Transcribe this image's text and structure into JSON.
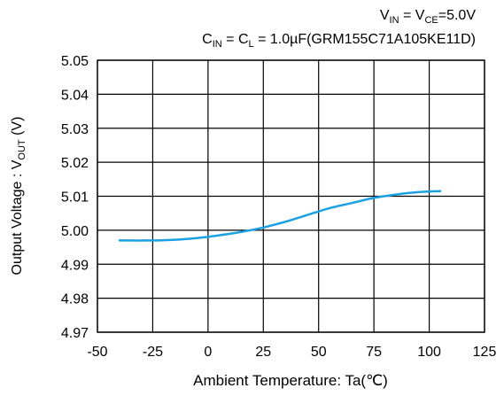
{
  "chart_data": {
    "type": "line",
    "conditions": {
      "line1": {
        "v": "V",
        "in_sub": "IN",
        "eq1": " = V",
        "ce_sub": "CE",
        "rest": "=5.0V"
      },
      "line2": {
        "c": "C",
        "in_sub": "IN",
        "eq1": " = C",
        "l_sub": "L",
        "rest": " = 1.0µF(GRM155C71A105KE11D)"
      }
    },
    "xlabel": "Ambient Temperature: Ta(℃)",
    "ylabel": {
      "pre": "Output Voltage :  V",
      "sub": "OUT",
      "post": " (V)"
    },
    "xlim": [
      -50,
      125
    ],
    "ylim": [
      4.97,
      5.05
    ],
    "x_ticks": [
      "-50",
      "-25",
      "0",
      "25",
      "50",
      "75",
      "100",
      "125"
    ],
    "y_ticks": [
      "5.05",
      "5.04",
      "5.03",
      "5.02",
      "5.01",
      "5.00",
      "4.99",
      "4.98",
      "4.97"
    ],
    "grid": true,
    "series": [
      {
        "color": "#1ba1e2",
        "x": [
          -40,
          -25,
          -15,
          -5,
          5,
          15,
          25,
          35,
          45,
          55,
          65,
          75,
          85,
          95,
          105
        ],
        "y": [
          4.997,
          4.997,
          4.9972,
          4.9977,
          4.9985,
          4.9995,
          5.0008,
          5.0025,
          5.0045,
          5.0065,
          5.008,
          5.0095,
          5.0105,
          5.0112,
          5.0115
        ]
      }
    ]
  }
}
